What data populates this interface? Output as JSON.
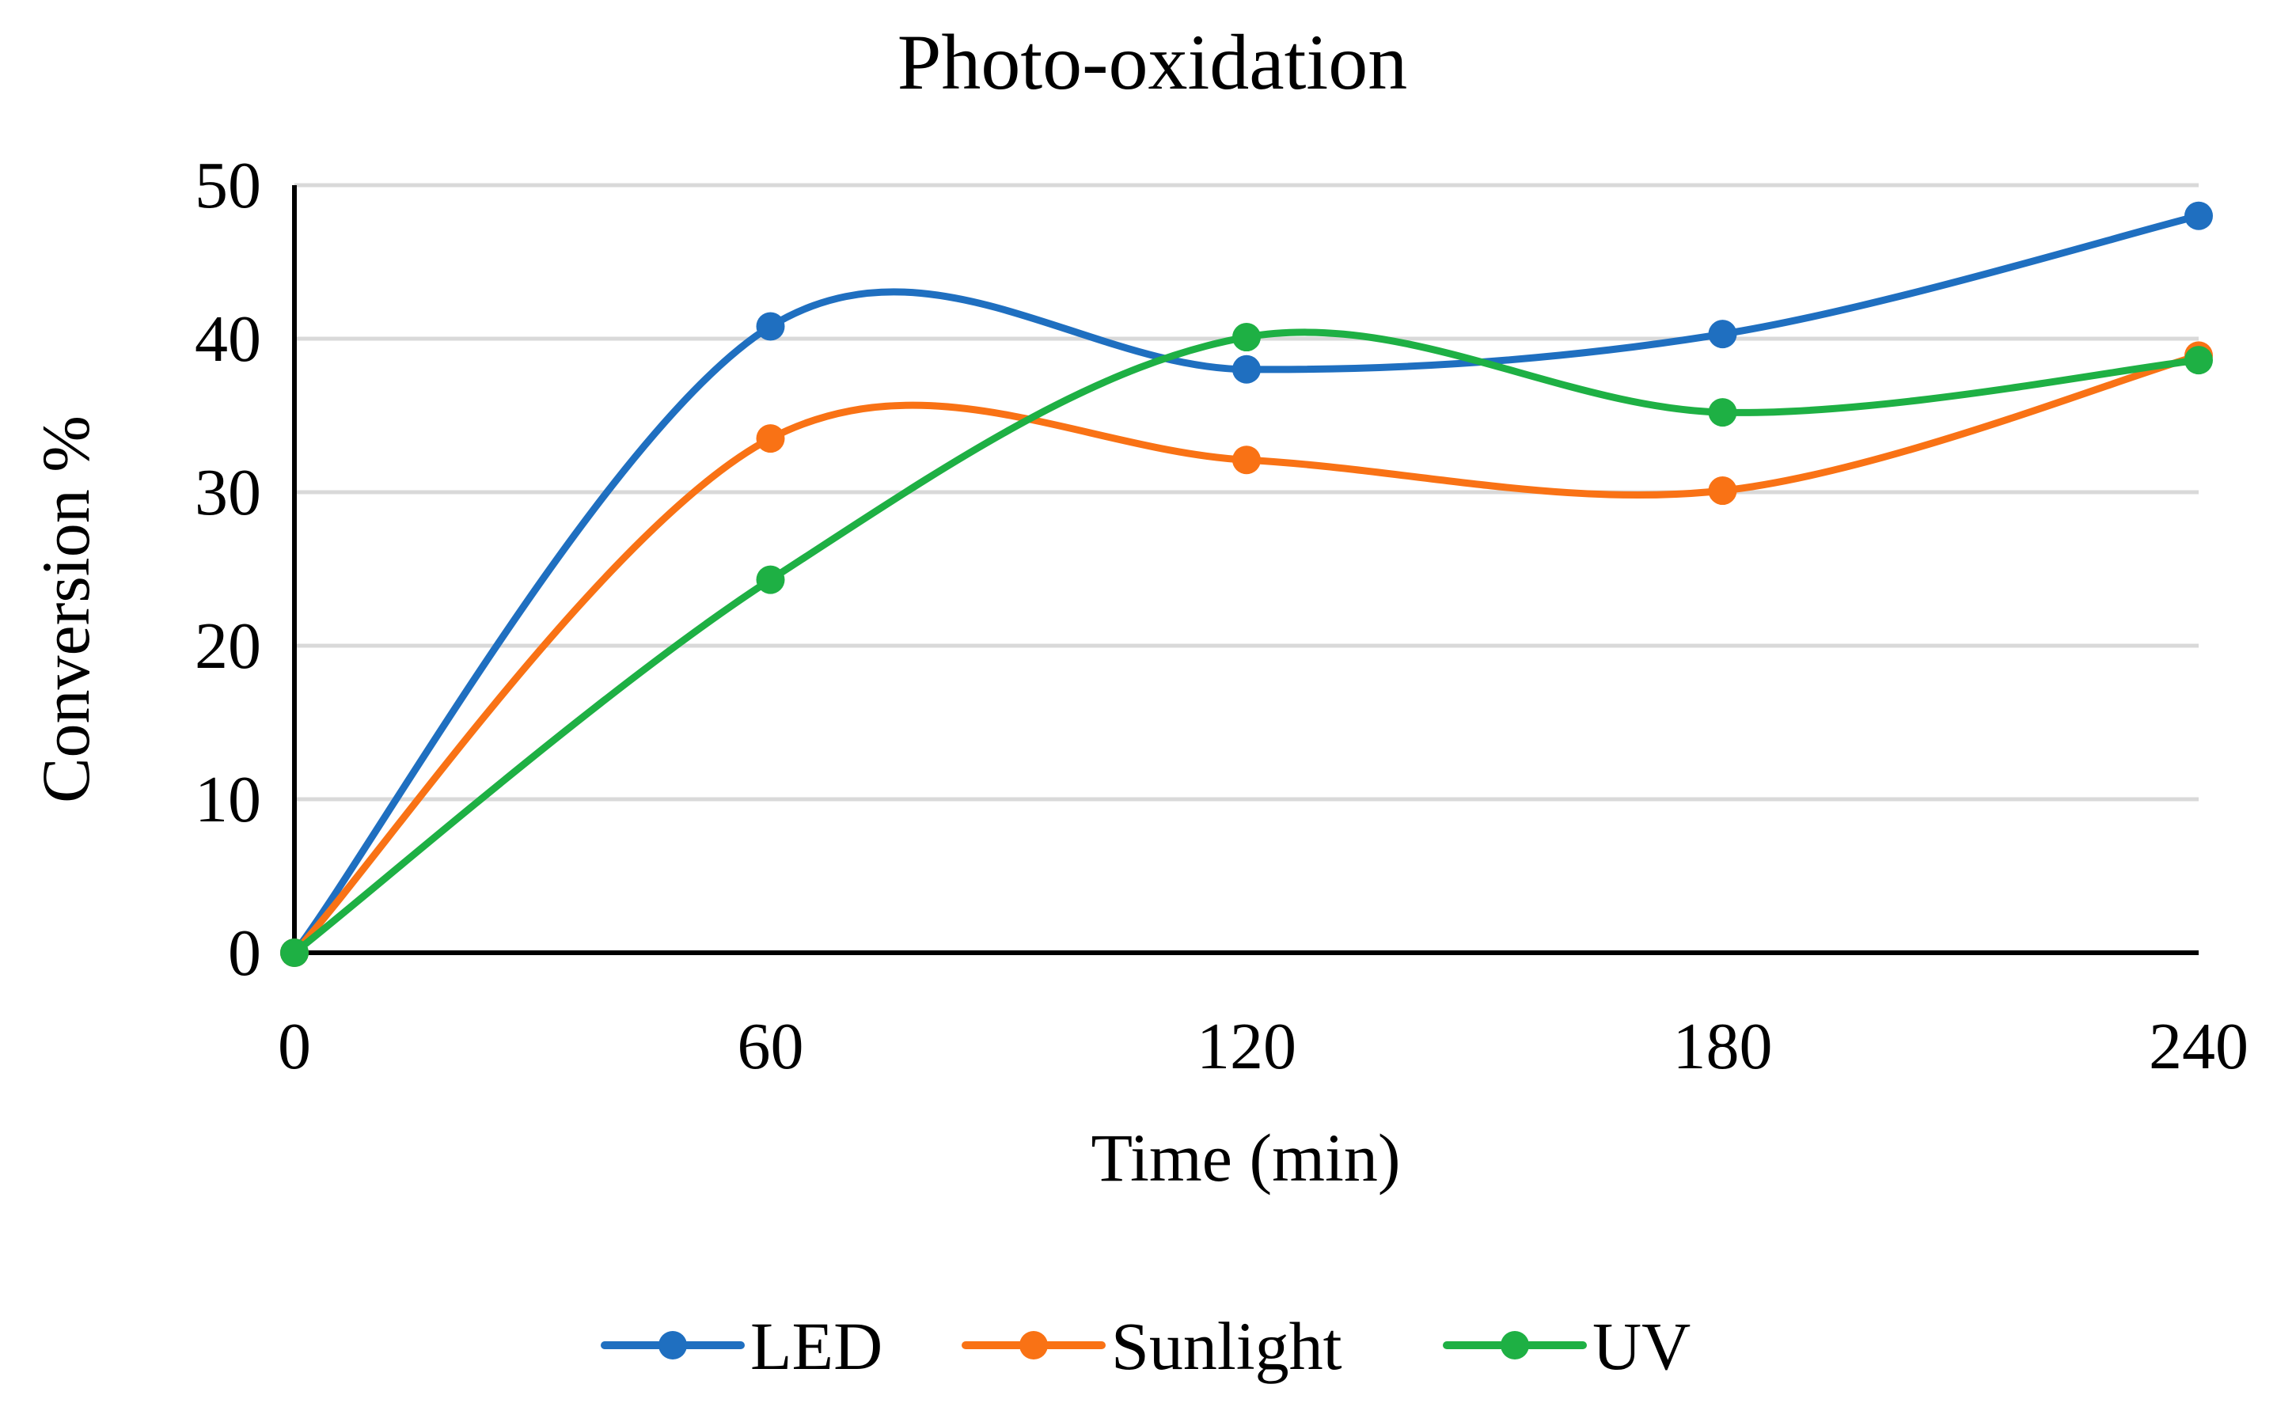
{
  "chart_data": {
    "type": "line",
    "title": "Photo-oxidation",
    "xlabel": "Time (min)",
    "ylabel": "Conversion %",
    "x": [
      0,
      60,
      120,
      180,
      240
    ],
    "x_tick_labels": [
      "0",
      "60",
      "120",
      "180",
      "240"
    ],
    "y_tick_labels": [
      "0",
      "10",
      "20",
      "30",
      "40",
      "50"
    ],
    "xlim": [
      0,
      240
    ],
    "ylim": [
      0,
      50
    ],
    "grid": "horizontal",
    "smooth": true,
    "legend_position": "bottom",
    "series": [
      {
        "name": "LED",
        "color": "#1f6fc0",
        "values": [
          0,
          40.8,
          38.0,
          40.3,
          48.0
        ]
      },
      {
        "name": "Sunlight",
        "color": "#f97215",
        "values": [
          0,
          33.5,
          32.1,
          30.1,
          38.9
        ]
      },
      {
        "name": "UV",
        "color": "#1eb044",
        "values": [
          0,
          24.3,
          40.1,
          35.2,
          38.6
        ]
      }
    ]
  }
}
